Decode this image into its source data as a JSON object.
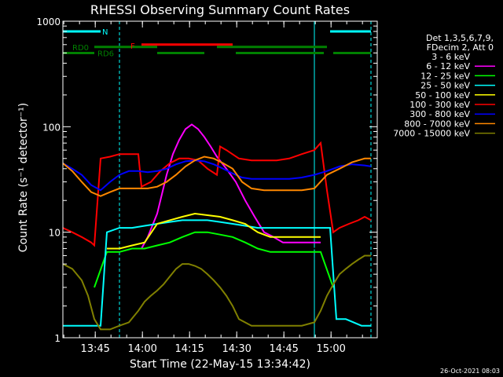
{
  "chart_data": {
    "type": "line",
    "title": "RHESSI Observing Summary Count Rates",
    "xlabel": "Start Time (22-May-15 13:34:42)",
    "ylabel": "Count Rate (s⁻¹ detector⁻¹)",
    "yscale": "log",
    "ylim": [
      1,
      1000
    ],
    "y_ticks": [
      1,
      10,
      100,
      1000
    ],
    "y_tick_labels": [
      "1",
      "10",
      "100",
      "1000"
    ],
    "x_unit": "minutes since 13:34:42",
    "xlim": [
      0,
      100
    ],
    "x_ticks": [
      10.3,
      25.3,
      40.3,
      55.3,
      70.3,
      85.3
    ],
    "x_tick_labels": [
      "13:45",
      "14:00",
      "14:15",
      "14:30",
      "14:45",
      "15:00"
    ],
    "legend_header": [
      "Det 1,3,5,6,7,9,",
      "FDecim 2, Att 0"
    ],
    "legend_position": "right",
    "series": [
      {
        "name": "3 - 6 keV",
        "color": "#000000",
        "x": [
          25,
          27,
          30,
          33,
          35,
          37,
          39,
          42,
          45,
          48,
          51,
          54,
          57,
          60,
          63,
          66,
          70,
          74,
          78,
          82
        ],
        "y": [
          7,
          8,
          11,
          20,
          35,
          45,
          55,
          57,
          52,
          45,
          36,
          28,
          19,
          12,
          9,
          8,
          7,
          7,
          7,
          7
        ]
      },
      {
        "name": "6 - 12 keV",
        "color": "#ff00ff",
        "x": [
          25,
          27,
          30,
          33,
          35,
          37,
          39,
          41,
          43,
          45,
          47,
          49,
          52,
          55,
          58,
          61,
          64,
          67,
          70,
          74,
          78,
          82
        ],
        "y": [
          7,
          9,
          15,
          35,
          55,
          75,
          95,
          105,
          95,
          80,
          65,
          52,
          40,
          30,
          20,
          14,
          10,
          9,
          8,
          8,
          8,
          8
        ]
      },
      {
        "name": "12 - 25 keV",
        "color": "#00ff00",
        "x": [
          10,
          14,
          18,
          22,
          26,
          30,
          34,
          38,
          42,
          46,
          50,
          54,
          58,
          62,
          66,
          70,
          74,
          78,
          82,
          86
        ],
        "y": [
          3,
          6.5,
          6.5,
          7,
          7,
          7.5,
          8,
          9,
          10,
          10,
          9.5,
          9,
          8,
          7,
          6.5,
          6.5,
          6.5,
          6.5,
          6.5,
          3
        ]
      },
      {
        "name": "25 - 50 keV",
        "color": "#00ffff",
        "x": [
          0,
          12,
          14,
          18,
          22,
          26,
          30,
          34,
          38,
          42,
          46,
          50,
          54,
          58,
          62,
          66,
          70,
          74,
          78,
          82,
          85,
          87,
          90,
          95,
          98
        ],
        "y": [
          1.3,
          1.3,
          10,
          11,
          11,
          11.5,
          12,
          12.5,
          13,
          13,
          13,
          12.5,
          12,
          11.5,
          11,
          11,
          11,
          11,
          11,
          11,
          11,
          1.5,
          1.5,
          1.3,
          1.3
        ]
      },
      {
        "name": "50 - 100 keV",
        "color": "#ffff00",
        "x": [
          14,
          18,
          22,
          26,
          30,
          34,
          38,
          42,
          46,
          50,
          54,
          58,
          62,
          66,
          70,
          74,
          78,
          82
        ],
        "y": [
          7,
          7,
          7.5,
          8,
          12,
          13,
          14,
          15,
          14.5,
          14,
          13,
          12,
          10,
          9,
          9,
          9,
          9,
          9
        ]
      },
      {
        "name": "100 - 300 keV",
        "color": "#ff0000",
        "x": [
          0,
          3,
          6,
          9,
          10,
          12,
          15,
          18,
          21,
          24,
          25,
          28,
          31,
          34,
          37,
          40,
          43,
          46,
          49,
          50,
          52,
          56,
          60,
          64,
          68,
          72,
          76,
          80,
          82,
          84,
          86,
          88,
          91,
          94,
          96,
          98
        ],
        "y": [
          11,
          10,
          9,
          8,
          7.5,
          50,
          52,
          55,
          55,
          55,
          27,
          30,
          38,
          45,
          50,
          50,
          48,
          40,
          35,
          65,
          60,
          50,
          48,
          48,
          48,
          50,
          55,
          60,
          70,
          25,
          10,
          11,
          12,
          13,
          14,
          13
        ]
      },
      {
        "name": "300 - 800 keV",
        "color": "#0000ff",
        "x": [
          0,
          3,
          6,
          9,
          12,
          15,
          18,
          21,
          24,
          27,
          30,
          33,
          36,
          39,
          42,
          45,
          48,
          51,
          54,
          57,
          60,
          64,
          68,
          72,
          76,
          80,
          84,
          88,
          92,
          96,
          98
        ],
        "y": [
          45,
          40,
          35,
          28,
          25,
          30,
          35,
          38,
          38,
          37,
          38,
          40,
          44,
          47,
          48,
          47,
          44,
          40,
          36,
          33,
          32,
          32,
          32,
          32,
          33,
          35,
          38,
          42,
          44,
          43,
          42
        ]
      },
      {
        "name": "800 - 7000 keV",
        "color": "#ff8800",
        "x": [
          0,
          3,
          6,
          9,
          12,
          15,
          18,
          21,
          24,
          27,
          30,
          33,
          36,
          39,
          42,
          45,
          48,
          51,
          54,
          57,
          60,
          64,
          68,
          72,
          76,
          80,
          84,
          88,
          92,
          96,
          98
        ],
        "y": [
          45,
          38,
          30,
          24,
          22,
          24,
          26,
          26,
          26,
          26,
          27,
          30,
          35,
          42,
          48,
          52,
          50,
          45,
          40,
          30,
          26,
          25,
          25,
          25,
          25,
          26,
          35,
          40,
          46,
          50,
          50
        ]
      },
      {
        "name": "7000 - 15000 keV",
        "color": "#808000",
        "x": [
          0,
          3,
          6,
          8,
          10,
          12,
          15,
          18,
          21,
          24,
          26,
          28,
          30,
          32,
          34,
          36,
          38,
          40,
          42,
          44,
          46,
          48,
          50,
          52,
          54,
          56,
          60,
          64,
          68,
          72,
          76,
          80,
          82,
          84,
          86,
          88,
          90,
          92,
          94,
          96,
          98
        ],
        "y": [
          5,
          4.5,
          3.5,
          2.5,
          1.5,
          1.2,
          1.2,
          1.3,
          1.4,
          1.8,
          2.2,
          2.5,
          2.8,
          3.2,
          3.8,
          4.5,
          5,
          5,
          4.8,
          4.5,
          4,
          3.5,
          3,
          2.5,
          2,
          1.5,
          1.3,
          1.3,
          1.3,
          1.3,
          1.3,
          1.4,
          1.8,
          2.5,
          3.2,
          4,
          4.5,
          5,
          5.5,
          6,
          6
        ]
      }
    ],
    "annotations": [
      {
        "text": "N",
        "color": "#00ffff"
      },
      {
        "text": "F",
        "color": "#ff0000"
      },
      {
        "text": "RD0",
        "color": "#008000"
      },
      {
        "text": "RD6",
        "color": "#008000"
      }
    ],
    "status_bars": {
      "N": {
        "color": "#00ffff",
        "level": 800,
        "segments": [
          [
            0,
            12
          ],
          [
            85,
            98
          ]
        ]
      },
      "F": {
        "color": "#ff0000",
        "level": 600,
        "segments": [
          [
            25,
            54
          ]
        ]
      },
      "RD0": {
        "color": "#008000",
        "level": 570,
        "segments": [
          [
            10,
            30
          ],
          [
            49,
            84
          ]
        ]
      },
      "RD6": {
        "color": "#008000",
        "level": 500,
        "segments": [
          [
            0,
            10
          ],
          [
            30,
            45
          ],
          [
            55,
            83
          ],
          [
            86,
            98
          ]
        ]
      }
    },
    "vertical_markers": [
      {
        "x": 18,
        "color": "#00ffff",
        "style": "dashed"
      },
      {
        "x": 80,
        "color": "#00ffff",
        "style": "solid"
      },
      {
        "x": 98,
        "color": "#00ffff",
        "style": "dashed"
      }
    ],
    "footer_timestamp": "26-Oct-2021 08:03"
  }
}
